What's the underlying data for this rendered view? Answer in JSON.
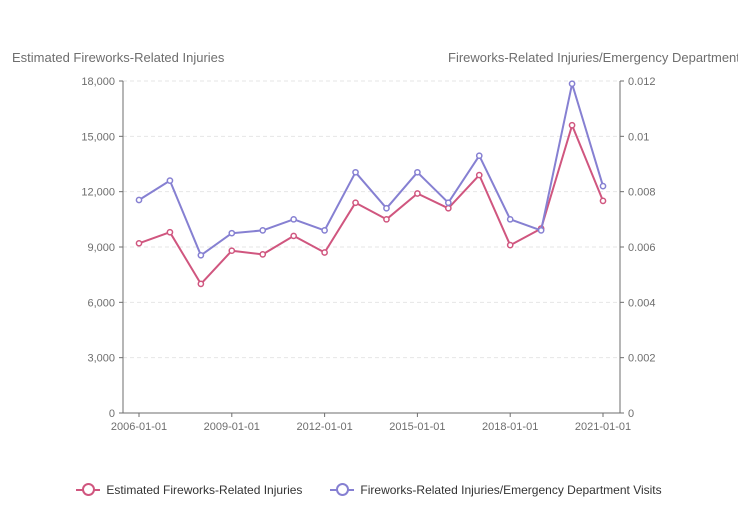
{
  "chart_data": {
    "type": "line",
    "left_axis_title": "Estimated Fireworks-Related Injuries",
    "right_axis_title": "Fireworks-Related Injuries/Emergency Department Visits",
    "x": [
      "2006-01-01",
      "2007-01-01",
      "2008-01-01",
      "2009-01-01",
      "2010-01-01",
      "2011-01-01",
      "2012-01-01",
      "2013-01-01",
      "2014-01-01",
      "2015-01-01",
      "2016-01-01",
      "2017-01-01",
      "2018-01-01",
      "2019-01-01",
      "2020-01-01",
      "2021-01-01"
    ],
    "x_tick_labels": [
      "2006-01-01",
      "2009-01-01",
      "2012-01-01",
      "2015-01-01",
      "2018-01-01",
      "2021-01-01"
    ],
    "y_left": {
      "range": [
        0,
        18000
      ],
      "ticks": [
        "0",
        "3,000",
        "6,000",
        "9,000",
        "12,000",
        "15,000",
        "18,000"
      ]
    },
    "y_right": {
      "range": [
        0,
        0.012
      ],
      "ticks": [
        "0",
        "0.002",
        "0.004",
        "0.006",
        "0.008",
        "0.01",
        "0.012"
      ]
    },
    "grid": true,
    "legend_position": "bottom",
    "series": [
      {
        "name": "Estimated Fireworks-Related Injuries",
        "axis": "left",
        "color": "#d0567f",
        "values": [
          9200,
          9800,
          7000,
          8800,
          8600,
          9600,
          8700,
          11400,
          10500,
          11900,
          11100,
          12900,
          9100,
          10000,
          15600,
          11500
        ]
      },
      {
        "name": "Fireworks-Related Injuries/Emergency Department Visits",
        "axis": "right",
        "color": "#8680d2",
        "values": [
          0.0077,
          0.0084,
          0.0057,
          0.0065,
          0.0066,
          0.007,
          0.0066,
          0.0087,
          0.0074,
          0.0087,
          0.0076,
          0.0093,
          0.007,
          0.0066,
          0.0119,
          0.0082
        ]
      }
    ]
  }
}
